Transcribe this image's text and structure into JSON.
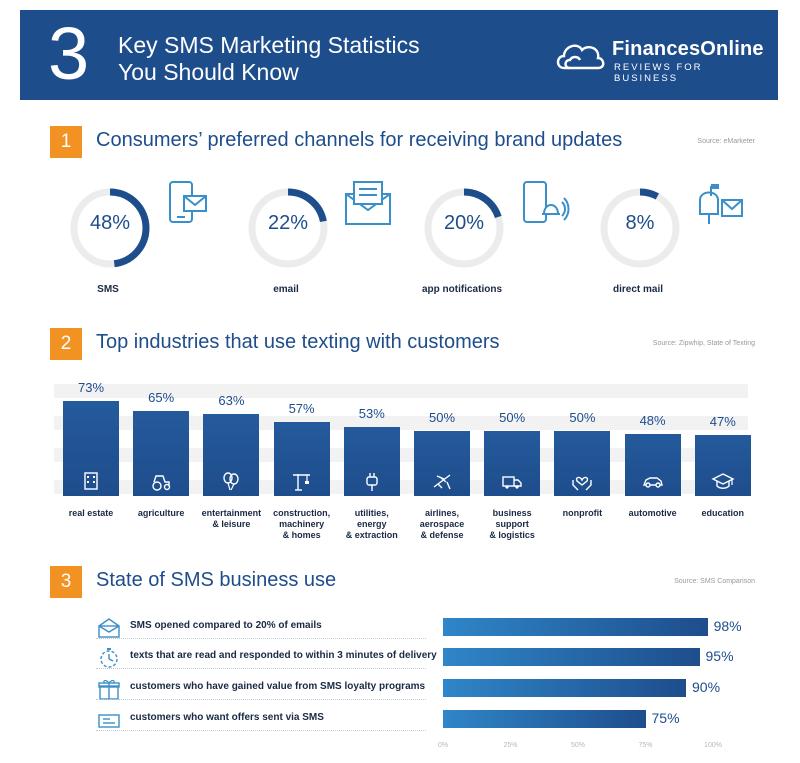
{
  "header": {
    "number": "3",
    "title": "Key SMS Marketing Statistics\n You Should Know",
    "brand": "FinancesOnline",
    "brand_sub": "REVIEWS FOR BUSINESS"
  },
  "colors": {
    "navy": "#1e4d8c",
    "accent": "#f29222",
    "light_blue": "#2f86c8"
  },
  "sections": [
    {
      "number": "1",
      "title": "Consumers’ preferred channels for receiving brand updates",
      "source": "Source: eMarketer"
    },
    {
      "number": "2",
      "title": "Top industries that use texting with customers",
      "source": "Source: Zipwhip, State of Texting"
    },
    {
      "number": "3",
      "title": "State of SMS business use",
      "source": "Source: SMS Comparison"
    }
  ],
  "chart_data": [
    {
      "type": "pie",
      "categories": [
        "SMS",
        "email",
        "app notifications",
        "direct mail"
      ],
      "values": [
        48,
        22,
        20,
        8
      ],
      "labels": [
        "48%",
        "22%",
        "20%",
        "8%"
      ],
      "icons": [
        "phone-message-icon",
        "envelope-icon",
        "phone-notification-icon",
        "mailbox-icon"
      ]
    },
    {
      "type": "bar",
      "categories": [
        "real estate",
        "agriculture",
        "entertainment\n& leisure",
        "construction,\nmachinery\n& homes",
        "utilities,\nenergy\n& extraction",
        "airlines,\naerospace\n& defense",
        "business\nsupport\n& logistics",
        "nonprofit",
        "automotive",
        "education"
      ],
      "values": [
        73,
        65,
        63,
        57,
        53,
        50,
        50,
        50,
        48,
        47
      ],
      "labels": [
        "73%",
        "65%",
        "63%",
        "57%",
        "53%",
        "50%",
        "50%",
        "50%",
        "48%",
        "47%"
      ],
      "icons": [
        "building-icon",
        "tractor-icon",
        "balloons-icon",
        "crane-icon",
        "plug-icon",
        "airplane-icon",
        "truck-icon",
        "heart-hands-icon",
        "car-icon",
        "graduation-cap-icon"
      ]
    },
    {
      "type": "bar",
      "orientation": "horizontal",
      "categories": [
        "SMS opened compared to 20% of emails",
        "texts that are read and responded to within 3 minutes of delivery",
        "customers who have gained value from SMS loyalty programs",
        "customers who want offers sent via SMS"
      ],
      "values": [
        98,
        95,
        90,
        75
      ],
      "labels": [
        "98%",
        "95%",
        "90%",
        "75%"
      ],
      "xlim": [
        0,
        100
      ],
      "xticks": [
        "0%",
        "25%",
        "50%",
        "75%",
        "100%"
      ],
      "icons": [
        "open-envelope-icon",
        "stopwatch-icon",
        "gift-icon",
        "ticket-icon"
      ]
    }
  ]
}
